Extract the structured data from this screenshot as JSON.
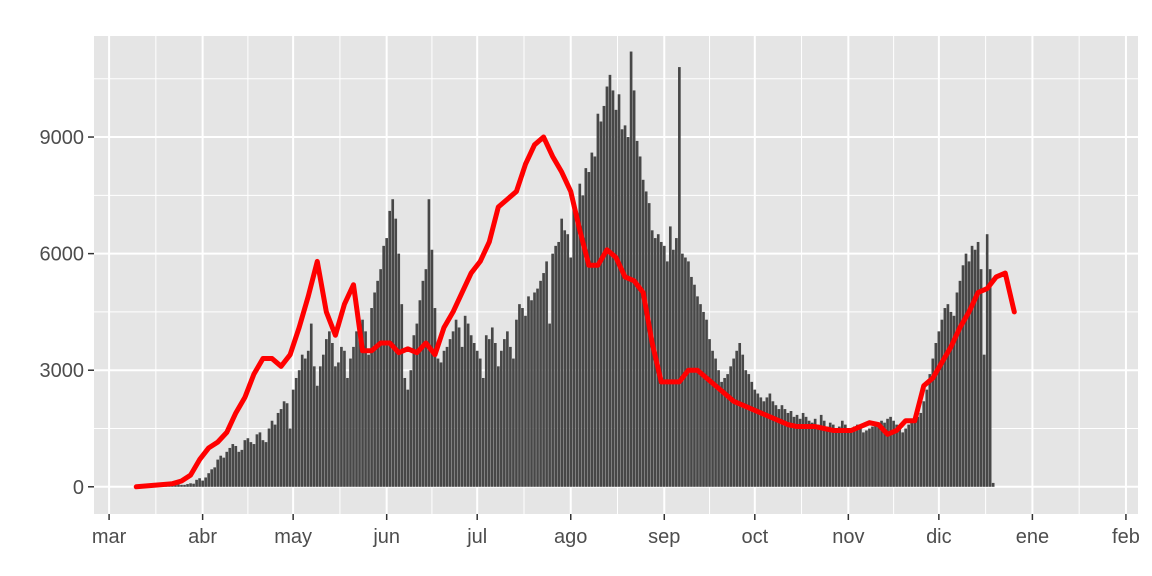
{
  "chart_data": {
    "type": "bar",
    "title": "",
    "xlabel": "",
    "ylabel": "",
    "x_domain": [
      "2020-02-25",
      "2021-02-05"
    ],
    "ylim": [
      -700,
      11600
    ],
    "y_ticks": [
      0,
      3000,
      6000,
      9000
    ],
    "y_tick_labels": [
      "0",
      "3000",
      "6000",
      "9000"
    ],
    "x_ticks": [
      "2020-03-01",
      "2020-04-01",
      "2020-05-01",
      "2020-06-01",
      "2020-07-01",
      "2020-08-01",
      "2020-09-01",
      "2020-10-01",
      "2020-11-01",
      "2020-12-01",
      "2021-01-01",
      "2021-02-01"
    ],
    "x_tick_labels": [
      "mar",
      "abr",
      "may",
      "jun",
      "jul",
      "ago",
      "sep",
      "oct",
      "nov",
      "dic",
      "ene",
      "feb"
    ],
    "grid": true,
    "colors": {
      "panel": "#e5e5e5",
      "grid": "#ffffff",
      "bar": "#474747",
      "line": "#ff0000",
      "text": "#4d4d4d",
      "tick": "#333333"
    },
    "bar_start_date": "2020-03-10",
    "bars": [
      0,
      0,
      0,
      0,
      10,
      10,
      20,
      30,
      20,
      30,
      40,
      50,
      40,
      60,
      60,
      50,
      50,
      70,
      90,
      80,
      180,
      220,
      160,
      240,
      350,
      450,
      500,
      700,
      800,
      750,
      900,
      1000,
      1100,
      1050,
      900,
      950,
      1200,
      1250,
      1150,
      1100,
      1350,
      1400,
      1200,
      1150,
      1500,
      1700,
      1600,
      1900,
      2000,
      2200,
      2150,
      1500,
      2500,
      2800,
      3000,
      3400,
      3300,
      3500,
      4200,
      3100,
      2600,
      3100,
      3400,
      3800,
      4000,
      3700,
      3100,
      3200,
      3600,
      3500,
      2800,
      3300,
      3600,
      4000,
      4200,
      4300,
      4000,
      3400,
      4600,
      5000,
      5300,
      5600,
      6200,
      6400,
      7100,
      7400,
      6900,
      6000,
      4700,
      2800,
      2500,
      3000,
      3900,
      4200,
      4800,
      5300,
      5600,
      7400,
      6100,
      4600,
      3300,
      3200,
      3500,
      3600,
      3800,
      4000,
      4300,
      4100,
      3600,
      4400,
      4200,
      3900,
      3700,
      3500,
      3300,
      2800,
      3900,
      3800,
      4100,
      3700,
      3100,
      3500,
      3800,
      4000,
      3600,
      3300,
      4300,
      4700,
      4600,
      4400,
      4900,
      4800,
      5000,
      5100,
      5300,
      5500,
      5800,
      4200,
      6000,
      6200,
      6300,
      6900,
      6600,
      6500,
      5900,
      7200,
      7000,
      7800,
      7500,
      8200,
      8100,
      8600,
      8500,
      9600,
      9400,
      9800,
      10300,
      10600,
      10200,
      9700,
      10100,
      9200,
      9300,
      9000,
      11200,
      10200,
      8900,
      8500,
      7900,
      7600,
      7300,
      6600,
      6400,
      6500,
      6300,
      6200,
      5800,
      6700,
      6100,
      6400,
      10800,
      6000,
      5900,
      5800,
      5400,
      5200,
      4900,
      4700,
      4500,
      4300,
      3800,
      3500,
      3300,
      3000,
      2700,
      2800,
      2900,
      3100,
      3300,
      3500,
      3700,
      3400,
      3000,
      2900,
      2700,
      2500,
      2400,
      2300,
      2200,
      2300,
      2400,
      2200,
      2100,
      2000,
      2100,
      2000,
      1900,
      1950,
      1800,
      1850,
      1750,
      1900,
      1800,
      1700,
      1650,
      1750,
      1600,
      1850,
      1700,
      1550,
      1650,
      1600,
      1500,
      1550,
      1700,
      1600,
      1500,
      1450,
      1550,
      1600,
      1500,
      1400,
      1450,
      1500,
      1550,
      1600,
      1650,
      1700,
      1650,
      1750,
      1800,
      1700,
      1600,
      1500,
      1400,
      1500,
      1600,
      1700,
      1750,
      1800,
      1900,
      2200,
      2500,
      2900,
      3300,
      3700,
      4000,
      4300,
      4600,
      4700,
      4500,
      4400,
      5000,
      5300,
      5700,
      6000,
      5800,
      6200,
      6100,
      6300,
      5600,
      3400,
      6500,
      5600,
      100
    ],
    "avg_start_date": "2020-03-10",
    "avg_step_days": 3,
    "rolling_avg": [
      0,
      20,
      40,
      60,
      80,
      150,
      300,
      700,
      1000,
      1150,
      1400,
      1900,
      2300,
      2900,
      3300,
      3300,
      3100,
      3400,
      4100,
      4900,
      5800,
      4500,
      3900,
      4700,
      5200,
      3500,
      3500,
      3700,
      3700,
      3450,
      3550,
      3450,
      3700,
      3400,
      4100,
      4500,
      5000,
      5500,
      5800,
      6300,
      7200,
      7400,
      7600,
      8300,
      8800,
      9000,
      8500,
      8100,
      7600,
      6600,
      5700,
      5700,
      6100,
      5900,
      5400,
      5300,
      5000,
      3700,
      2700,
      2700,
      2700,
      3000,
      3000,
      2800,
      2600,
      2400,
      2200,
      2100,
      2000,
      1900,
      1800,
      1700,
      1600,
      1550,
      1550,
      1550,
      1500,
      1450,
      1450,
      1450,
      1550,
      1650,
      1600,
      1350,
      1450,
      1700,
      1700,
      2600,
      2800,
      3200,
      3600,
      4100,
      4500,
      5000,
      5100,
      5400,
      5500,
      4500
    ]
  }
}
